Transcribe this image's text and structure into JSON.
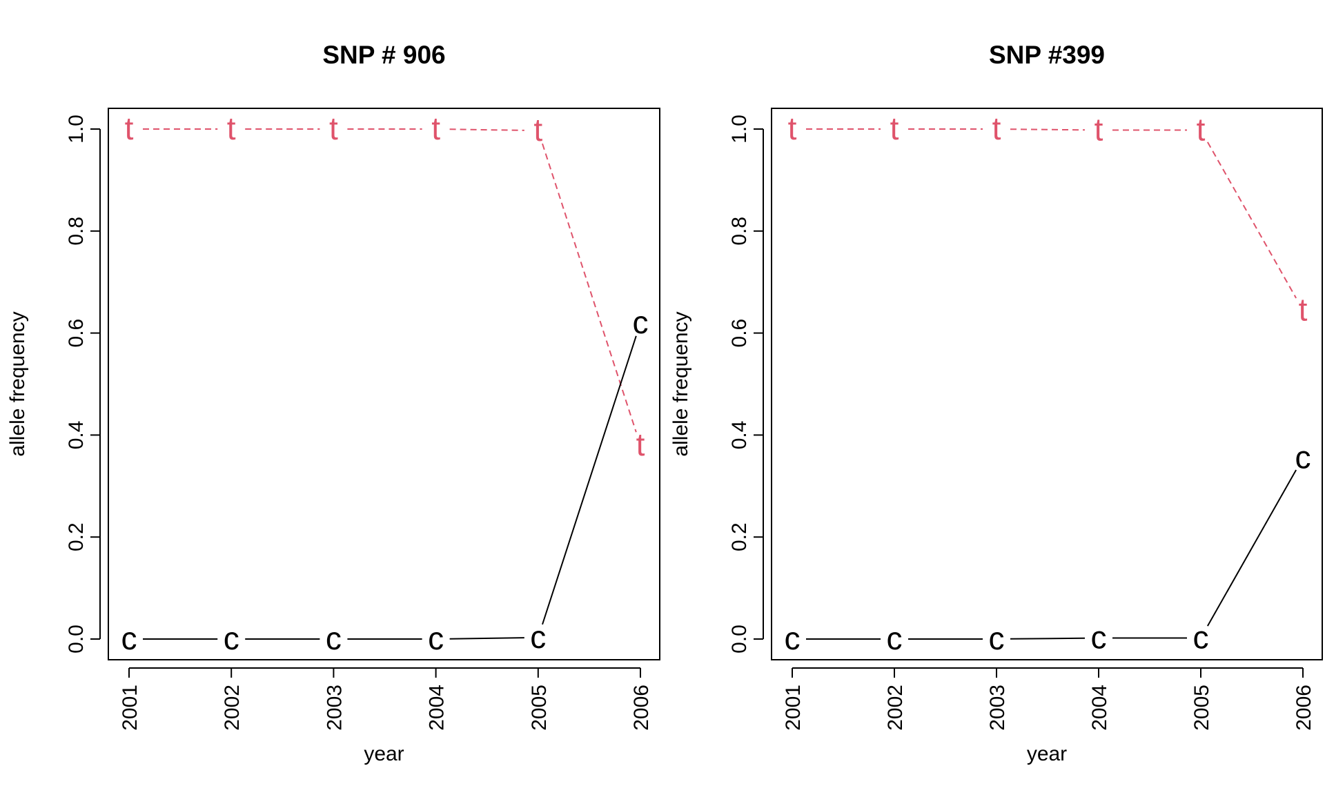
{
  "chart_data": [
    {
      "type": "line",
      "title": "SNP # 906",
      "xlabel": "year",
      "ylabel": "allele frequency",
      "categories": [
        "2001",
        "2002",
        "2003",
        "2004",
        "2005",
        "2006"
      ],
      "ylim": [
        0.0,
        1.0
      ],
      "yticks": [
        "0.0",
        "0.2",
        "0.4",
        "0.6",
        "0.8",
        "1.0"
      ],
      "grid": false,
      "series": [
        {
          "marker": "t",
          "color": "#DF536B",
          "line_style": "dashed",
          "values": [
            1.0,
            1.0,
            1.0,
            1.0,
            0.997,
            0.38
          ]
        },
        {
          "marker": "c",
          "color": "#000000",
          "line_style": "solid",
          "values": [
            0.0,
            0.0,
            0.0,
            0.0,
            0.003,
            0.62
          ]
        }
      ]
    },
    {
      "type": "line",
      "title": "SNP #399",
      "xlabel": "year",
      "ylabel": "allele frequency",
      "categories": [
        "2001",
        "2002",
        "2003",
        "2004",
        "2005",
        "2006"
      ],
      "ylim": [
        0.0,
        1.0
      ],
      "yticks": [
        "0.0",
        "0.2",
        "0.4",
        "0.6",
        "0.8",
        "1.0"
      ],
      "grid": false,
      "series": [
        {
          "marker": "t",
          "color": "#DF536B",
          "line_style": "dashed",
          "values": [
            1.0,
            1.0,
            1.0,
            0.998,
            0.998,
            0.645
          ]
        },
        {
          "marker": "c",
          "color": "#000000",
          "line_style": "solid",
          "values": [
            0.0,
            0.0,
            0.0,
            0.002,
            0.002,
            0.355
          ]
        }
      ]
    }
  ]
}
